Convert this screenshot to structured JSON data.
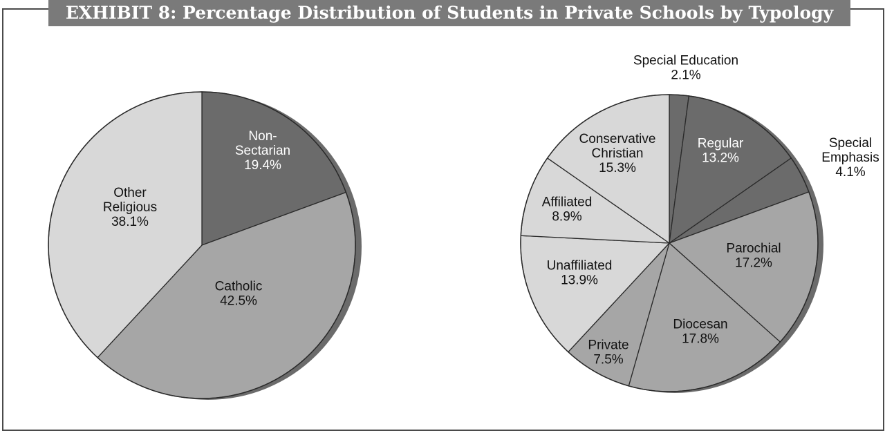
{
  "exhibit_title": "EXHIBIT 8: Percentage Distribution of Students in Private Schools by Typology",
  "colors": {
    "dark": "#6b6b6b",
    "medium": "#a6a6a6",
    "light": "#d8d8d8",
    "frame": "#4a4a4a"
  },
  "chart_data": [
    {
      "type": "pie",
      "title": "",
      "slices": [
        {
          "label": "Non-Sectarian",
          "display": [
            "Non-",
            "Sectarian",
            "19.4%"
          ],
          "value": 19.4,
          "shade": "dark"
        },
        {
          "label": "Catholic",
          "display": [
            "Catholic",
            "42.5%"
          ],
          "value": 42.5,
          "shade": "medium"
        },
        {
          "label": "Other Religious",
          "display": [
            "Other",
            "Religious",
            "38.1%"
          ],
          "value": 38.1,
          "shade": "light"
        }
      ]
    },
    {
      "type": "pie",
      "title": "",
      "slices": [
        {
          "label": "Special Education",
          "display": [
            "Special Education",
            "2.1%"
          ],
          "value": 2.1,
          "shade": "dark"
        },
        {
          "label": "Regular",
          "display": [
            "Regular",
            "13.2%"
          ],
          "value": 13.2,
          "shade": "dark"
        },
        {
          "label": "Special Emphasis",
          "display": [
            "Special",
            "Emphasis",
            "4.1%"
          ],
          "value": 4.1,
          "shade": "dark"
        },
        {
          "label": "Parochial",
          "display": [
            "Parochial",
            "17.2%"
          ],
          "value": 17.2,
          "shade": "medium"
        },
        {
          "label": "Diocesan",
          "display": [
            "Diocesan",
            "17.8%"
          ],
          "value": 17.8,
          "shade": "medium"
        },
        {
          "label": "Private",
          "display": [
            "Private",
            "7.5%"
          ],
          "value": 7.5,
          "shade": "medium"
        },
        {
          "label": "Unaffiliated",
          "display": [
            "Unaffiliated",
            "13.9%"
          ],
          "value": 13.9,
          "shade": "light"
        },
        {
          "label": "Affiliated",
          "display": [
            "Affiliated",
            "8.9%"
          ],
          "value": 8.9,
          "shade": "light"
        },
        {
          "label": "Conservative Christian",
          "display": [
            "Conservative",
            "Christian",
            "15.3%"
          ],
          "value": 15.3,
          "shade": "light"
        }
      ]
    }
  ]
}
